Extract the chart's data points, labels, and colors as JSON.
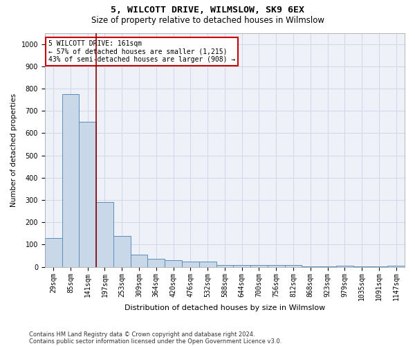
{
  "title1": "5, WILCOTT DRIVE, WILMSLOW, SK9 6EX",
  "title2": "Size of property relative to detached houses in Wilmslow",
  "xlabel": "Distribution of detached houses by size in Wilmslow",
  "ylabel": "Number of detached properties",
  "footnote1": "Contains HM Land Registry data © Crown copyright and database right 2024.",
  "footnote2": "Contains public sector information licensed under the Open Government Licence v3.0.",
  "bar_color": "#c8d8e8",
  "bar_edge_color": "#5b8db8",
  "grid_color": "#d0d8e8",
  "vline_color": "#8b0000",
  "annotation_border_color": "#cc0000",
  "annotation_text": "5 WILCOTT DRIVE: 161sqm\n← 57% of detached houses are smaller (1,215)\n43% of semi-detached houses are larger (908) →",
  "vline_x": 2.5,
  "categories": [
    "29sqm",
    "85sqm",
    "141sqm",
    "197sqm",
    "253sqm",
    "309sqm",
    "364sqm",
    "420sqm",
    "476sqm",
    "532sqm",
    "588sqm",
    "644sqm",
    "700sqm",
    "756sqm",
    "812sqm",
    "868sqm",
    "923sqm",
    "979sqm",
    "1035sqm",
    "1091sqm",
    "1147sqm"
  ],
  "values": [
    130,
    775,
    650,
    290,
    140,
    55,
    35,
    30,
    25,
    25,
    8,
    8,
    8,
    8,
    8,
    2,
    2,
    5,
    2,
    2,
    5
  ],
  "ylim": [
    0,
    1050
  ],
  "yticks": [
    0,
    100,
    200,
    300,
    400,
    500,
    600,
    700,
    800,
    900,
    1000
  ],
  "title1_fontsize": 9.5,
  "title2_fontsize": 8.5,
  "xlabel_fontsize": 8,
  "ylabel_fontsize": 7.5,
  "tick_fontsize": 7,
  "annot_fontsize": 7,
  "footnote_fontsize": 6
}
